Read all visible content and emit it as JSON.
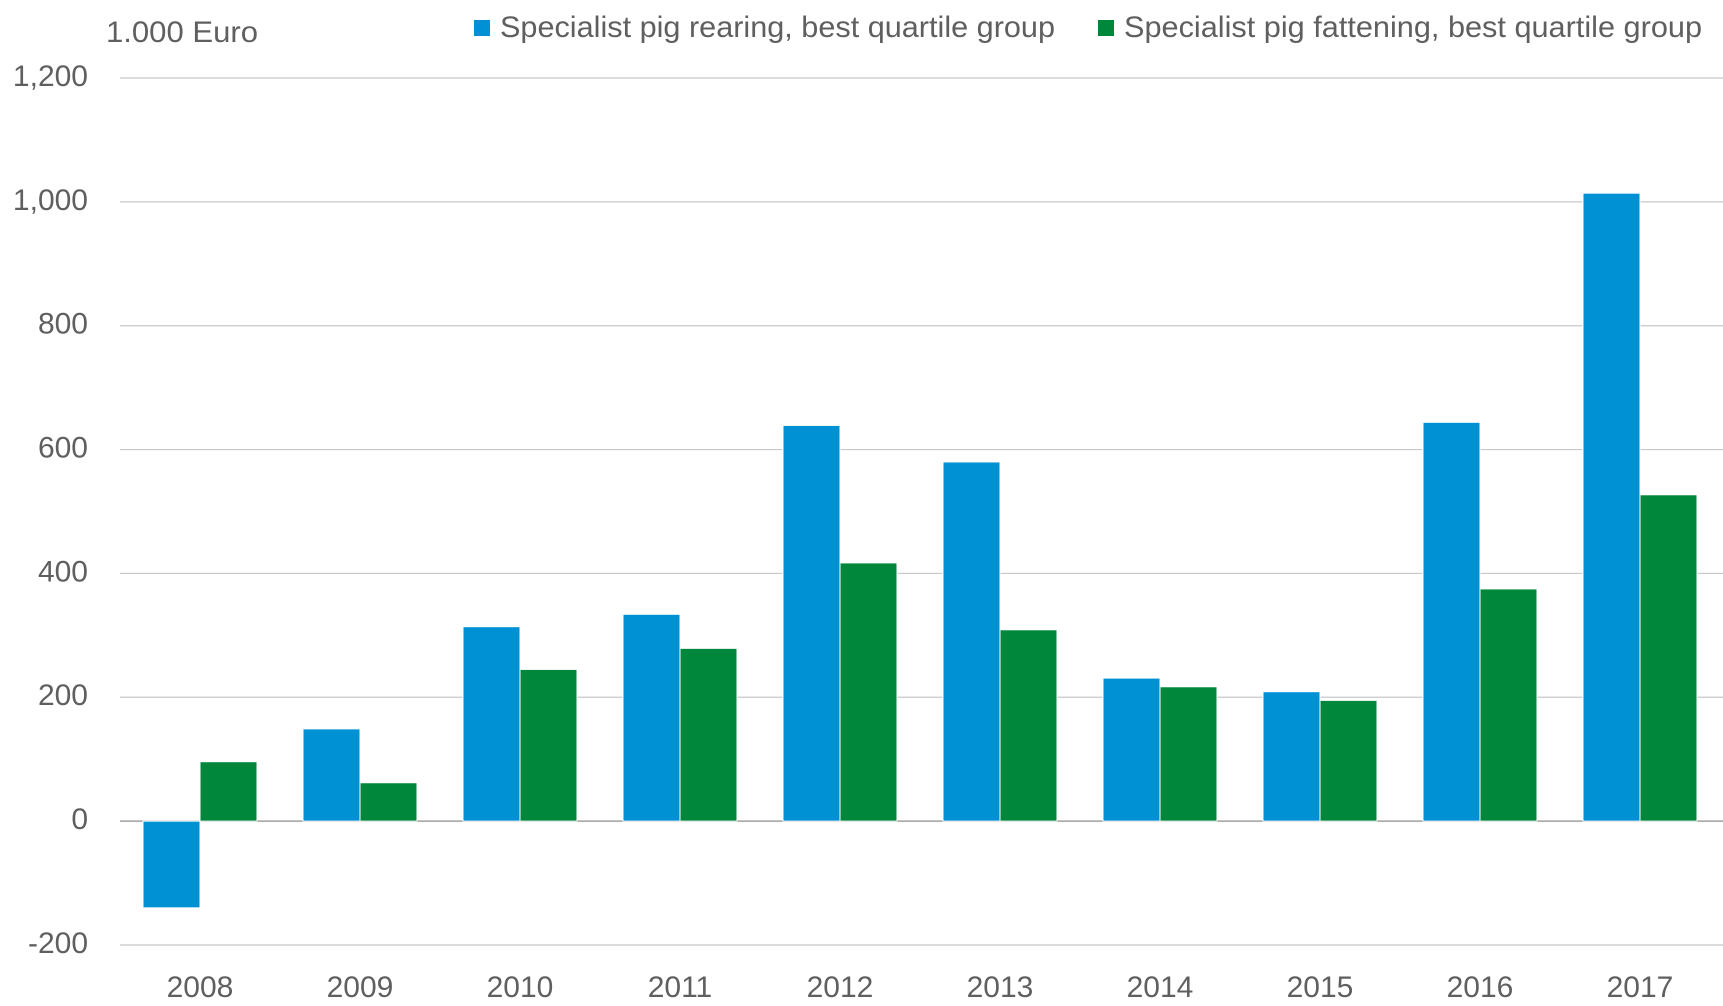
{
  "chart_data": {
    "type": "bar",
    "y_unit_label": "1.000 Euro",
    "categories": [
      "2008",
      "2009",
      "2010",
      "2011",
      "2012",
      "2013",
      "2014",
      "2015",
      "2016",
      "2017"
    ],
    "series": [
      {
        "name": "Specialist pig rearing, best quartile group",
        "color": "#0091d5",
        "values": [
          -140,
          149,
          314,
          334,
          639,
          580,
          231,
          209,
          644,
          1014
        ]
      },
      {
        "name": "Specialist pig fattening, best quartile group",
        "color": "#00873c",
        "values": [
          96,
          62,
          245,
          279,
          417,
          309,
          217,
          195,
          375,
          527
        ]
      }
    ],
    "ylim": [
      -200,
      1200
    ],
    "yticks": [
      -200,
      0,
      200,
      400,
      600,
      800,
      {
        "value": 1000,
        "label": "1,000"
      },
      {
        "value": 1200,
        "label": "1,200"
      }
    ],
    "grid": true,
    "legend": "top"
  }
}
